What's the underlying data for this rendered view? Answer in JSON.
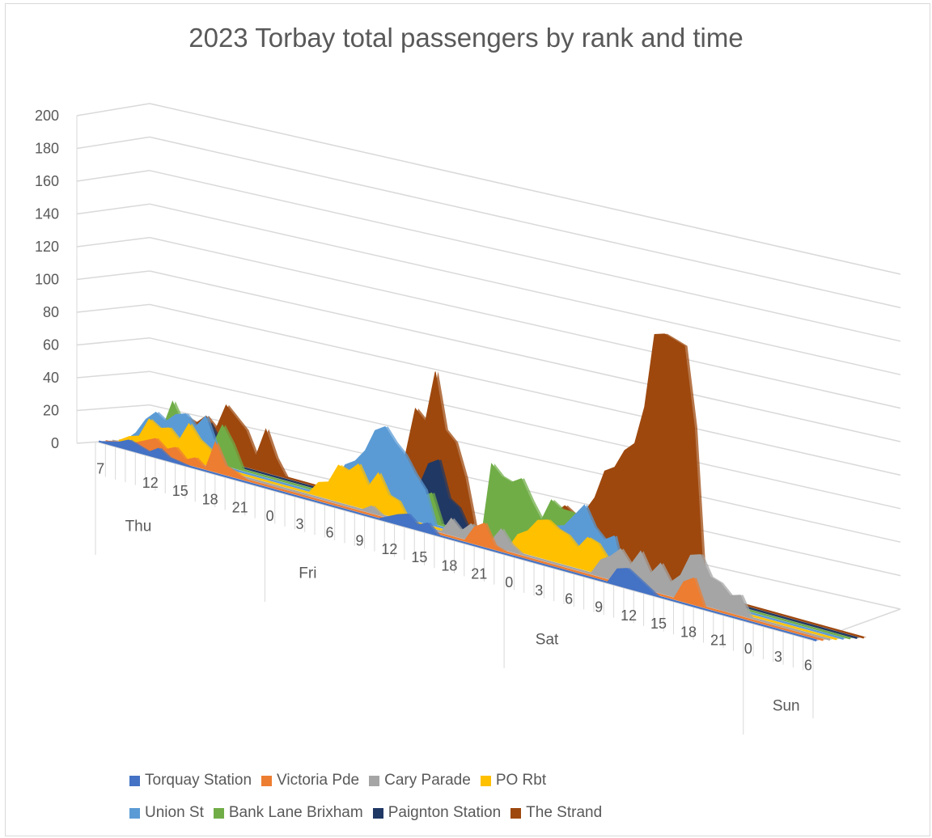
{
  "chart_data": {
    "type": "area",
    "title": "2023 Torbay total passengers by rank and time",
    "xlabel": "",
    "ylabel": "",
    "ylim": [
      0,
      200
    ],
    "y_ticks": [
      "0",
      "20",
      "40",
      "60",
      "80",
      "100",
      "120",
      "140",
      "160",
      "180",
      "200"
    ],
    "x_hour_labels": [
      "7",
      "12",
      "15",
      "18",
      "21",
      "0",
      "3",
      "6",
      "9",
      "12",
      "15",
      "18",
      "21",
      "0",
      "3",
      "6",
      "9",
      "12",
      "15",
      "18",
      "21",
      "0",
      "3",
      "6"
    ],
    "x_hour_values": [
      7,
      12,
      15,
      18,
      21,
      24,
      27,
      30,
      33,
      36,
      39,
      42,
      45,
      48,
      51,
      54,
      57,
      60,
      63,
      66,
      69,
      72,
      75,
      78
    ],
    "days": [
      {
        "label": "Thu",
        "start": 7
      },
      {
        "label": "Fri",
        "start": 24
      },
      {
        "label": "Sat",
        "start": 48
      },
      {
        "label": "Sun",
        "start": 72
      }
    ],
    "x_range": [
      7,
      79
    ],
    "grid": true,
    "legend_position": "bottom",
    "series": [
      {
        "name": "Torquay Station",
        "color": "#4472c4",
        "points": [
          [
            7,
            0
          ],
          [
            9,
            3
          ],
          [
            10,
            6
          ],
          [
            12,
            2
          ],
          [
            13,
            6
          ],
          [
            14,
            2
          ],
          [
            16,
            0
          ],
          [
            24,
            0
          ],
          [
            35,
            0
          ],
          [
            37,
            6
          ],
          [
            38,
            8
          ],
          [
            39,
            3
          ],
          [
            40,
            6
          ],
          [
            41,
            0
          ],
          [
            58,
            0
          ],
          [
            59,
            10
          ],
          [
            60,
            12
          ],
          [
            61,
            8
          ],
          [
            62,
            4
          ],
          [
            63,
            0
          ],
          [
            79,
            0
          ]
        ]
      },
      {
        "name": "Victoria Pde",
        "color": "#ed7d31",
        "points": [
          [
            7,
            0
          ],
          [
            10,
            4
          ],
          [
            12,
            10
          ],
          [
            13,
            5
          ],
          [
            14,
            8
          ],
          [
            15,
            2
          ],
          [
            16,
            5
          ],
          [
            17,
            0
          ],
          [
            18,
            18
          ],
          [
            19,
            5
          ],
          [
            20,
            3
          ],
          [
            21,
            0
          ],
          [
            35,
            0
          ],
          [
            43,
            0
          ],
          [
            44,
            10
          ],
          [
            45,
            14
          ],
          [
            46,
            2
          ],
          [
            47,
            0
          ],
          [
            64,
            0
          ],
          [
            65,
            12
          ],
          [
            66,
            16
          ],
          [
            67,
            0
          ],
          [
            79,
            0
          ]
        ]
      },
      {
        "name": "Cary Parade",
        "color": "#a5a5a5",
        "points": [
          [
            7,
            0
          ],
          [
            32,
            0
          ],
          [
            33,
            4
          ],
          [
            34,
            0
          ],
          [
            40,
            0
          ],
          [
            41,
            10
          ],
          [
            42,
            4
          ],
          [
            43,
            10
          ],
          [
            44,
            4
          ],
          [
            45,
            3
          ],
          [
            46,
            12
          ],
          [
            47,
            4
          ],
          [
            48,
            0
          ],
          [
            55,
            0
          ],
          [
            56,
            10
          ],
          [
            57,
            14
          ],
          [
            58,
            20
          ],
          [
            59,
            12
          ],
          [
            60,
            22
          ],
          [
            61,
            10
          ],
          [
            62,
            18
          ],
          [
            63,
            8
          ],
          [
            64,
            14
          ],
          [
            65,
            28
          ],
          [
            66,
            30
          ],
          [
            67,
            18
          ],
          [
            68,
            16
          ],
          [
            69,
            10
          ],
          [
            70,
            12
          ],
          [
            71,
            0
          ],
          [
            79,
            0
          ]
        ]
      },
      {
        "name": "PO Rbt",
        "color": "#ffc000",
        "points": [
          [
            7,
            0
          ],
          [
            8,
            4
          ],
          [
            9,
            6
          ],
          [
            10,
            18
          ],
          [
            11,
            14
          ],
          [
            12,
            16
          ],
          [
            13,
            10
          ],
          [
            14,
            22
          ],
          [
            15,
            14
          ],
          [
            16,
            10
          ],
          [
            17,
            0
          ],
          [
            26,
            0
          ],
          [
            27,
            8
          ],
          [
            28,
            10
          ],
          [
            29,
            22
          ],
          [
            30,
            20
          ],
          [
            31,
            26
          ],
          [
            32,
            14
          ],
          [
            33,
            24
          ],
          [
            34,
            12
          ],
          [
            35,
            10
          ],
          [
            36,
            0
          ],
          [
            46,
            0
          ],
          [
            47,
            10
          ],
          [
            48,
            14
          ],
          [
            49,
            22
          ],
          [
            50,
            24
          ],
          [
            51,
            20
          ],
          [
            52,
            18
          ],
          [
            53,
            12
          ],
          [
            54,
            20
          ],
          [
            55,
            18
          ],
          [
            56,
            10
          ],
          [
            57,
            0
          ],
          [
            79,
            0
          ]
        ]
      },
      {
        "name": "Union St",
        "color": "#5b9bd5",
        "points": [
          [
            7,
            0
          ],
          [
            8,
            6
          ],
          [
            9,
            16
          ],
          [
            10,
            22
          ],
          [
            11,
            18
          ],
          [
            12,
            24
          ],
          [
            13,
            26
          ],
          [
            14,
            20
          ],
          [
            15,
            28
          ],
          [
            16,
            12
          ],
          [
            17,
            0
          ],
          [
            27,
            0
          ],
          [
            28,
            10
          ],
          [
            29,
            22
          ],
          [
            30,
            26
          ],
          [
            31,
            34
          ],
          [
            32,
            48
          ],
          [
            33,
            52
          ],
          [
            34,
            44
          ],
          [
            35,
            38
          ],
          [
            36,
            28
          ],
          [
            37,
            20
          ],
          [
            38,
            0
          ],
          [
            47,
            0
          ],
          [
            48,
            10
          ],
          [
            49,
            14
          ],
          [
            50,
            20
          ],
          [
            51,
            22
          ],
          [
            52,
            30
          ],
          [
            53,
            38
          ],
          [
            54,
            26
          ],
          [
            55,
            20
          ],
          [
            56,
            24
          ],
          [
            57,
            0
          ],
          [
            79,
            0
          ]
        ]
      },
      {
        "name": "Bank Lane Brixham",
        "color": "#70ad47",
        "points": [
          [
            7,
            0
          ],
          [
            10,
            12
          ],
          [
            11,
            30
          ],
          [
            12,
            18
          ],
          [
            13,
            16
          ],
          [
            14,
            22
          ],
          [
            15,
            10
          ],
          [
            16,
            24
          ],
          [
            17,
            14
          ],
          [
            18,
            0
          ],
          [
            30,
            0
          ],
          [
            31,
            20
          ],
          [
            32,
            16
          ],
          [
            33,
            12
          ],
          [
            34,
            20
          ],
          [
            35,
            18
          ],
          [
            36,
            14
          ],
          [
            37,
            18
          ],
          [
            38,
            0
          ],
          [
            42,
            0
          ],
          [
            43,
            46
          ],
          [
            44,
            40
          ],
          [
            45,
            38
          ],
          [
            46,
            42
          ],
          [
            47,
            30
          ],
          [
            48,
            20
          ],
          [
            49,
            34
          ],
          [
            50,
            30
          ],
          [
            51,
            30
          ],
          [
            52,
            28
          ],
          [
            53,
            14
          ],
          [
            54,
            0
          ],
          [
            79,
            0
          ]
        ]
      },
      {
        "name": "Paignton Station",
        "color": "#203864",
        "points": [
          [
            7,
            0
          ],
          [
            10,
            10
          ],
          [
            11,
            20
          ],
          [
            12,
            14
          ],
          [
            13,
            10
          ],
          [
            14,
            22
          ],
          [
            15,
            12
          ],
          [
            16,
            0
          ],
          [
            29,
            0
          ],
          [
            30,
            18
          ],
          [
            31,
            28
          ],
          [
            32,
            20
          ],
          [
            33,
            24
          ],
          [
            34,
            16
          ],
          [
            35,
            18
          ],
          [
            36,
            34
          ],
          [
            37,
            38
          ],
          [
            38,
            16
          ],
          [
            39,
            12
          ],
          [
            40,
            0
          ],
          [
            44,
            0
          ],
          [
            45,
            30
          ],
          [
            46,
            22
          ],
          [
            47,
            18
          ],
          [
            48,
            12
          ],
          [
            49,
            10
          ],
          [
            50,
            20
          ],
          [
            51,
            22
          ],
          [
            52,
            20
          ],
          [
            53,
            14
          ],
          [
            54,
            0
          ],
          [
            79,
            0
          ]
        ]
      },
      {
        "name": "The Strand",
        "color": "#9e480e",
        "points": [
          [
            7,
            0
          ],
          [
            10,
            12
          ],
          [
            11,
            20
          ],
          [
            12,
            18
          ],
          [
            13,
            24
          ],
          [
            14,
            18
          ],
          [
            15,
            34
          ],
          [
            16,
            28
          ],
          [
            17,
            22
          ],
          [
            18,
            8
          ],
          [
            19,
            26
          ],
          [
            20,
            10
          ],
          [
            21,
            0
          ],
          [
            29,
            0
          ],
          [
            30,
            16
          ],
          [
            31,
            8
          ],
          [
            32,
            20
          ],
          [
            33,
            34
          ],
          [
            34,
            64
          ],
          [
            35,
            58
          ],
          [
            36,
            90
          ],
          [
            37,
            56
          ],
          [
            38,
            50
          ],
          [
            39,
            30
          ],
          [
            40,
            0
          ],
          [
            46,
            0
          ],
          [
            47,
            22
          ],
          [
            48,
            24
          ],
          [
            49,
            30
          ],
          [
            50,
            26
          ],
          [
            51,
            30
          ],
          [
            52,
            40
          ],
          [
            53,
            58
          ],
          [
            54,
            62
          ],
          [
            55,
            74
          ],
          [
            56,
            80
          ],
          [
            57,
            104
          ],
          [
            58,
            150
          ],
          [
            59,
            152
          ],
          [
            60,
            150
          ],
          [
            61,
            148
          ],
          [
            62,
            100
          ],
          [
            63,
            0
          ],
          [
            79,
            0
          ]
        ]
      }
    ]
  }
}
